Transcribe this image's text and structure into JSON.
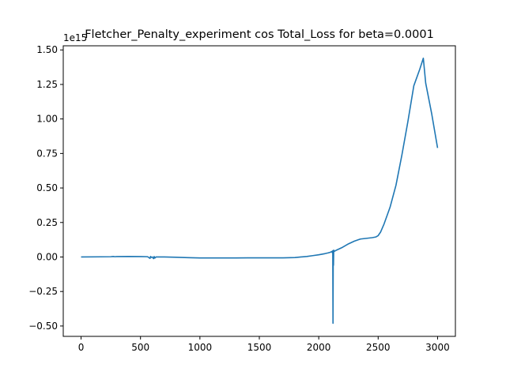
{
  "chart_data": {
    "type": "line",
    "title": "Fletcher_Penalty_experiment cos Total_Loss for beta=0.0001",
    "xlabel": "",
    "ylabel": "",
    "y_offset_label": "1e15",
    "xlim": [
      -150,
      3150
    ],
    "ylim": [
      -0.575,
      1.53
    ],
    "x_ticks": [
      0,
      500,
      1000,
      1500,
      2000,
      2500,
      3000
    ],
    "x_tick_labels": [
      "0",
      "500",
      "1000",
      "1500",
      "2000",
      "2500",
      "3000"
    ],
    "y_ticks": [
      -0.5,
      -0.25,
      0.0,
      0.25,
      0.5,
      0.75,
      1.0,
      1.25,
      1.5
    ],
    "y_tick_labels": [
      "−0.50",
      "−0.25",
      "0.00",
      "0.25",
      "0.50",
      "0.75",
      "1.00",
      "1.25",
      "1.50"
    ],
    "grid": false,
    "legend": "none",
    "series": [
      {
        "color": "#1f77b4",
        "x": [
          0,
          250,
          270,
          285,
          300,
          400,
          500,
          560,
          580,
          585,
          590,
          600,
          610,
          615,
          620,
          630,
          700,
          800,
          900,
          1000,
          1100,
          1200,
          1300,
          1400,
          1500,
          1600,
          1700,
          1800,
          1850,
          1900,
          1950,
          2000,
          2050,
          2080,
          2100,
          2110,
          2115,
          2118,
          2120,
          2122,
          2124,
          2126,
          2130,
          2150,
          2200,
          2250,
          2300,
          2350,
          2400,
          2450,
          2480,
          2500,
          2520,
          2550,
          2600,
          2650,
          2700,
          2750,
          2800,
          2850,
          2880,
          2900,
          2950,
          3000
        ],
        "y": [
          0.0,
          0.002,
          0.004,
          0.002,
          0.003,
          0.004,
          0.003,
          0.002,
          -0.01,
          0.004,
          -0.003,
          0.0,
          -0.012,
          0.003,
          -0.008,
          0.0,
          0.0,
          -0.002,
          -0.005,
          -0.007,
          -0.007,
          -0.007,
          -0.007,
          -0.006,
          -0.006,
          -0.006,
          -0.006,
          -0.004,
          0.0,
          0.004,
          0.01,
          0.016,
          0.024,
          0.03,
          0.035,
          0.04,
          0.03,
          0.045,
          -0.48,
          0.02,
          -0.06,
          0.05,
          0.04,
          0.05,
          0.07,
          0.095,
          0.115,
          0.13,
          0.135,
          0.14,
          0.145,
          0.155,
          0.18,
          0.24,
          0.36,
          0.52,
          0.74,
          0.98,
          1.24,
          1.36,
          1.44,
          1.26,
          1.04,
          0.79
        ]
      }
    ]
  }
}
